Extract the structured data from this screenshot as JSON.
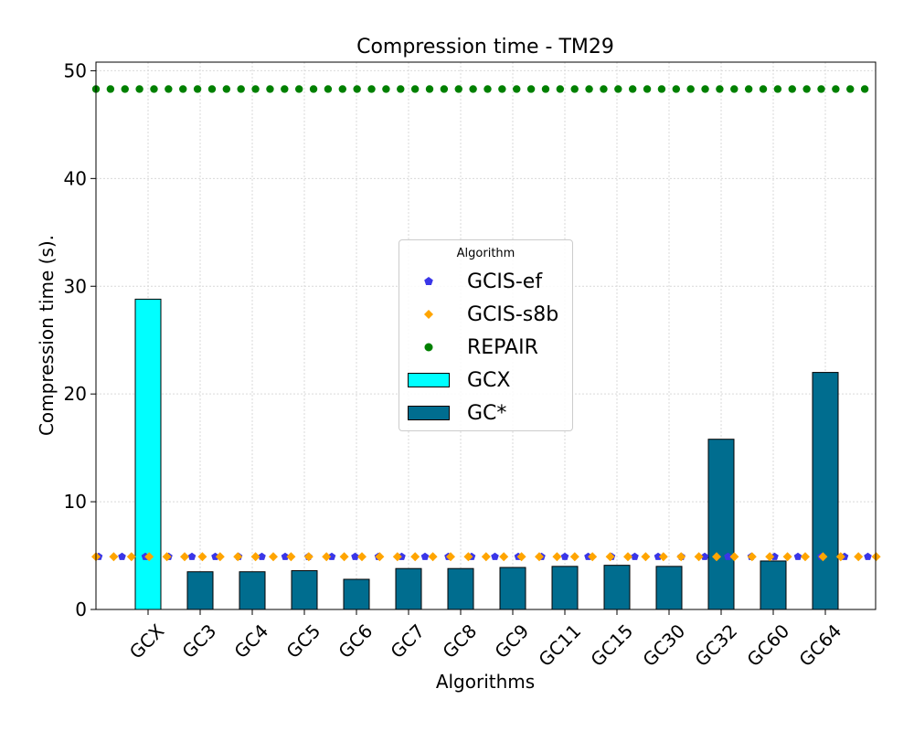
{
  "chart_data": {
    "type": "bar",
    "title": "Compression time -  TM29",
    "xlabel": "Algorithms",
    "ylabel": "Compression time (s).",
    "ylim": [
      0,
      50.8
    ],
    "yticks": [
      0,
      10,
      20,
      30,
      40,
      50
    ],
    "grid": true,
    "categories": [
      "GCX",
      "GC3",
      "GC4",
      "GC5",
      "GC6",
      "GC7",
      "GC8",
      "GC9",
      "GC11",
      "GC15",
      "GC30",
      "GC32",
      "GC60",
      "GC64"
    ],
    "bars": [
      {
        "name": "GCX",
        "color": "#00ffff",
        "values": [
          28.8,
          null,
          null,
          null,
          null,
          null,
          null,
          null,
          null,
          null,
          null,
          null,
          null,
          null
        ]
      },
      {
        "name": "GC*",
        "color": "#006d8f",
        "values": [
          null,
          3.5,
          3.5,
          3.6,
          2.8,
          3.8,
          3.8,
          3.9,
          4.0,
          4.1,
          4.0,
          15.8,
          4.5,
          22.0
        ]
      }
    ],
    "reference_lines": [
      {
        "name": "GCIS-ef",
        "value": 4.9,
        "color": "#3a36e8",
        "marker": "pentagon"
      },
      {
        "name": "GCIS-s8b",
        "value": 4.9,
        "color": "#ffa500",
        "marker": "diamond"
      },
      {
        "name": "REPAIR",
        "value": 48.3,
        "color": "#008000",
        "marker": "circle"
      }
    ],
    "legend": {
      "title": "Algorithm",
      "position": "center",
      "entries": [
        "GCIS-ef",
        "GCIS-s8b",
        "REPAIR",
        "GCX",
        "GC*"
      ]
    }
  }
}
